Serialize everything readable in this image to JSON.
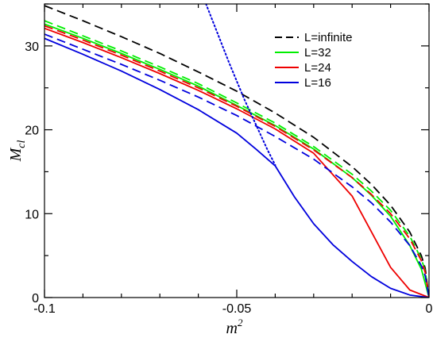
{
  "chart_data": {
    "type": "line",
    "xlabel": "m",
    "xlabel_sup": "2",
    "ylabel": "M",
    "ylabel_sub": "cl",
    "xlim": [
      -0.1,
      0.0
    ],
    "ylim": [
      0,
      35
    ],
    "x_ticks": [
      -0.1,
      -0.05,
      0
    ],
    "x_tick_labels": [
      "-0.1",
      "-0.05",
      "0"
    ],
    "x_minor_step": 0.01,
    "y_ticks": [
      0,
      10,
      20,
      30
    ],
    "y_tick_labels": [
      "0",
      "10",
      "20",
      "30"
    ],
    "y_minor_step": 5,
    "grid": false,
    "legend_position": "top-right",
    "legend": [
      {
        "label": "L=infinite",
        "color": "#000000",
        "dash": "dashed"
      },
      {
        "label": "L=32",
        "color": "#00ee00",
        "dash": "solid"
      },
      {
        "label": "L=24",
        "color": "#ee0000",
        "dash": "solid"
      },
      {
        "label": "L=16",
        "color": "#0000dd",
        "dash": "solid"
      }
    ],
    "series": [
      {
        "key": "inf_dashed",
        "color": "#000000",
        "dash": "dashed",
        "points": [
          [
            -0.1,
            34.8
          ],
          [
            -0.09,
            33.0
          ],
          [
            -0.08,
            31.1
          ],
          [
            -0.07,
            29.1
          ],
          [
            -0.06,
            26.9
          ],
          [
            -0.05,
            24.6
          ],
          [
            -0.04,
            22.0
          ],
          [
            -0.03,
            19.1
          ],
          [
            -0.02,
            15.6
          ],
          [
            -0.015,
            13.5
          ],
          [
            -0.01,
            11.0
          ],
          [
            -0.005,
            7.8
          ],
          [
            -0.002,
            5.0
          ],
          [
            -0.001,
            3.5
          ],
          [
            0,
            0
          ]
        ]
      },
      {
        "key": "L32_dashed",
        "color": "#00ee00",
        "dash": "dashed",
        "points": [
          [
            -0.1,
            33.0
          ],
          [
            -0.09,
            31.2
          ],
          [
            -0.08,
            29.4
          ],
          [
            -0.07,
            27.5
          ],
          [
            -0.06,
            25.5
          ],
          [
            -0.05,
            23.2
          ],
          [
            -0.04,
            20.8
          ],
          [
            -0.03,
            18.0
          ],
          [
            -0.02,
            14.7
          ],
          [
            -0.015,
            12.7
          ],
          [
            -0.01,
            10.4
          ],
          [
            -0.005,
            7.3
          ],
          [
            -0.002,
            4.6
          ],
          [
            -0.001,
            3.2
          ],
          [
            0,
            0
          ]
        ]
      },
      {
        "key": "L32_solid",
        "color": "#00ee00",
        "dash": "solid",
        "points": [
          [
            -0.1,
            32.6
          ],
          [
            -0.09,
            30.9
          ],
          [
            -0.08,
            29.1
          ],
          [
            -0.07,
            27.2
          ],
          [
            -0.06,
            25.2
          ],
          [
            -0.05,
            22.9
          ],
          [
            -0.04,
            20.5
          ],
          [
            -0.03,
            17.7
          ],
          [
            -0.02,
            14.3
          ],
          [
            -0.015,
            12.2
          ],
          [
            -0.01,
            9.7
          ],
          [
            -0.005,
            6.2
          ],
          [
            -0.002,
            3.4
          ],
          [
            0,
            0
          ]
        ]
      },
      {
        "key": "L24_dashed",
        "color": "#ee0000",
        "dash": "dashed",
        "points": [
          [
            -0.1,
            32.4
          ],
          [
            -0.09,
            30.7
          ],
          [
            -0.08,
            28.9
          ],
          [
            -0.07,
            27.0
          ],
          [
            -0.06,
            25.0
          ],
          [
            -0.05,
            22.8
          ],
          [
            -0.04,
            20.4
          ],
          [
            -0.03,
            17.6
          ],
          [
            -0.02,
            14.3
          ],
          [
            -0.015,
            12.3
          ],
          [
            -0.01,
            10.0
          ],
          [
            -0.005,
            7.0
          ],
          [
            -0.002,
            4.4
          ],
          [
            -0.001,
            3.0
          ],
          [
            0,
            0
          ]
        ]
      },
      {
        "key": "L24_solid",
        "color": "#ee0000",
        "dash": "solid",
        "points": [
          [
            -0.1,
            32.1
          ],
          [
            -0.09,
            30.4
          ],
          [
            -0.08,
            28.6
          ],
          [
            -0.07,
            26.7
          ],
          [
            -0.06,
            24.7
          ],
          [
            -0.05,
            22.5
          ],
          [
            -0.04,
            20.1
          ],
          [
            -0.03,
            17.2
          ],
          [
            -0.02,
            12.1
          ],
          [
            -0.01,
            3.6
          ],
          [
            -0.005,
            0.9
          ],
          [
            0,
            0
          ]
        ]
      },
      {
        "key": "L16_dashed",
        "color": "#0000dd",
        "dash": "dashed",
        "points": [
          [
            -0.1,
            31.4
          ],
          [
            -0.09,
            29.6
          ],
          [
            -0.08,
            27.8
          ],
          [
            -0.07,
            25.9
          ],
          [
            -0.06,
            23.9
          ],
          [
            -0.05,
            21.7
          ],
          [
            -0.04,
            19.2
          ],
          [
            -0.03,
            16.5
          ],
          [
            -0.02,
            13.2
          ],
          [
            -0.015,
            11.3
          ],
          [
            -0.01,
            9.0
          ],
          [
            -0.005,
            6.2
          ],
          [
            -0.002,
            3.8
          ],
          [
            -0.001,
            2.6
          ],
          [
            0,
            0
          ]
        ]
      },
      {
        "key": "L16_solid",
        "color": "#0000dd",
        "dash": "solid",
        "points": [
          [
            -0.1,
            30.9
          ],
          [
            -0.09,
            29.0
          ],
          [
            -0.08,
            27.0
          ],
          [
            -0.07,
            24.8
          ],
          [
            -0.06,
            22.4
          ],
          [
            -0.05,
            19.6
          ],
          [
            -0.045,
            17.7
          ],
          [
            -0.04,
            15.7
          ],
          [
            -0.035,
            12.0
          ],
          [
            -0.03,
            8.8
          ],
          [
            -0.025,
            6.3
          ],
          [
            -0.02,
            4.3
          ],
          [
            -0.015,
            2.5
          ],
          [
            -0.01,
            1.1
          ],
          [
            -0.005,
            0.3
          ],
          [
            0,
            0
          ]
        ]
      },
      {
        "key": "L16_dotted",
        "color": "#0000dd",
        "dash": "dotted",
        "points": [
          [
            -0.058,
            35.0
          ],
          [
            -0.055,
            31.5
          ],
          [
            -0.052,
            28.0
          ],
          [
            -0.05,
            25.8
          ],
          [
            -0.048,
            23.6
          ],
          [
            -0.046,
            21.6
          ],
          [
            -0.044,
            19.6
          ],
          [
            -0.042,
            17.6
          ],
          [
            -0.04,
            15.8
          ]
        ]
      }
    ]
  }
}
